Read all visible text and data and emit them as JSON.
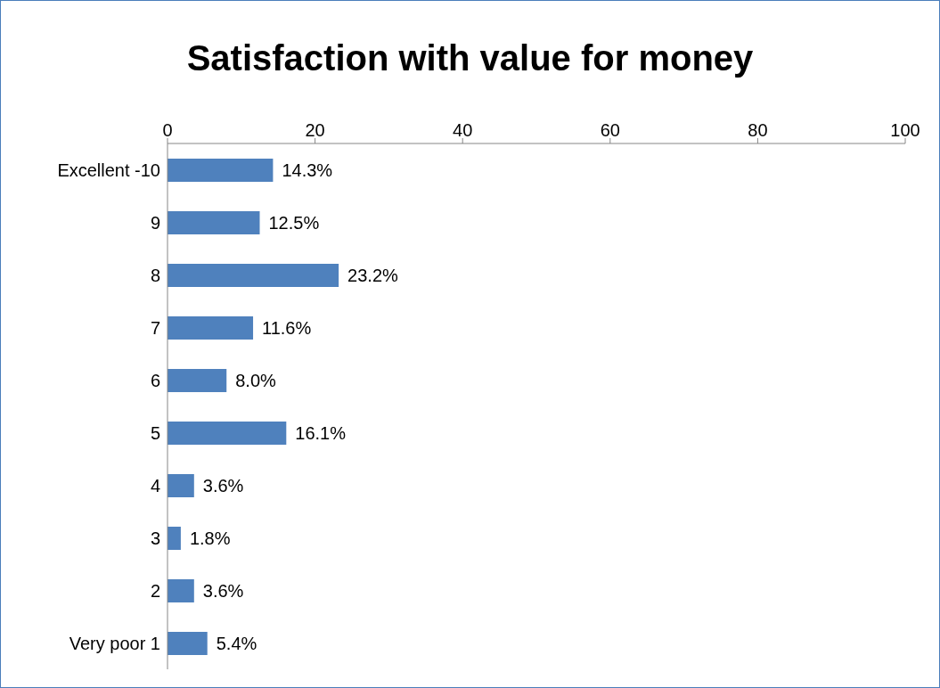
{
  "chart_data": {
    "type": "bar",
    "orientation": "horizontal",
    "title": "Satisfaction with value for money",
    "categories": [
      "Excellent -10",
      "9",
      "8",
      "7",
      "6",
      "5",
      "4",
      "3",
      "2",
      "Very poor 1"
    ],
    "values": [
      14.3,
      12.5,
      23.2,
      11.6,
      8.0,
      16.1,
      3.6,
      1.8,
      3.6,
      5.4
    ],
    "value_labels": [
      "14.3%",
      "12.5%",
      "23.2%",
      "11.6%",
      "8.0%",
      "16.1%",
      "3.6%",
      "1.8%",
      "3.6%",
      "5.4%"
    ],
    "color": "#4f81bd",
    "xlim": [
      0,
      100
    ],
    "xticks": [
      0,
      20,
      40,
      60,
      80,
      100
    ],
    "grid": false,
    "legend": false
  }
}
